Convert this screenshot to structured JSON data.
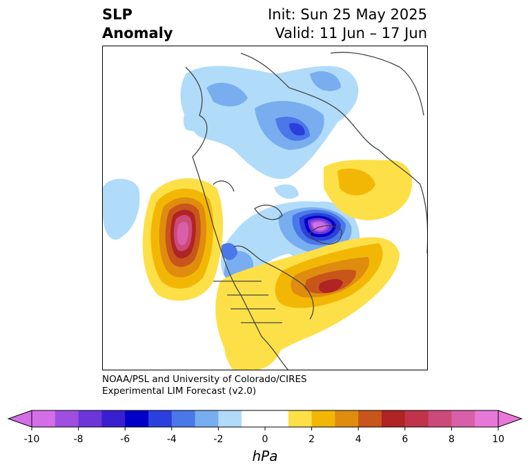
{
  "title": {
    "left_line1": "SLP",
    "left_line2": "Anomaly",
    "right_line1": "Init: Sun 25 May 2025",
    "right_line2": "Valid: 11 Jun – 17 Jun"
  },
  "credit": {
    "line1": "NOAA/PSL and University of Colorado/CIRES",
    "line2": "Experimental LIM Forecast (v2.0)"
  },
  "colorbar": {
    "unit": "hPa",
    "ticks": [
      "-10",
      "-8",
      "-6",
      "-4",
      "-2",
      "0",
      "2",
      "4",
      "6",
      "8",
      "10"
    ],
    "colors": [
      "#d36ee8",
      "#9e4fe0",
      "#6a36d9",
      "#3a1fd0",
      "#0000c8",
      "#2a40dc",
      "#4a78e8",
      "#78aef0",
      "#b0dcfa",
      "#ffffff",
      "#ffffff",
      "#fde047",
      "#f2b705",
      "#e08c0e",
      "#c8551a",
      "#b02424",
      "#c0334a",
      "#cc4a7a",
      "#d860a8",
      "#e878d8"
    ]
  }
}
